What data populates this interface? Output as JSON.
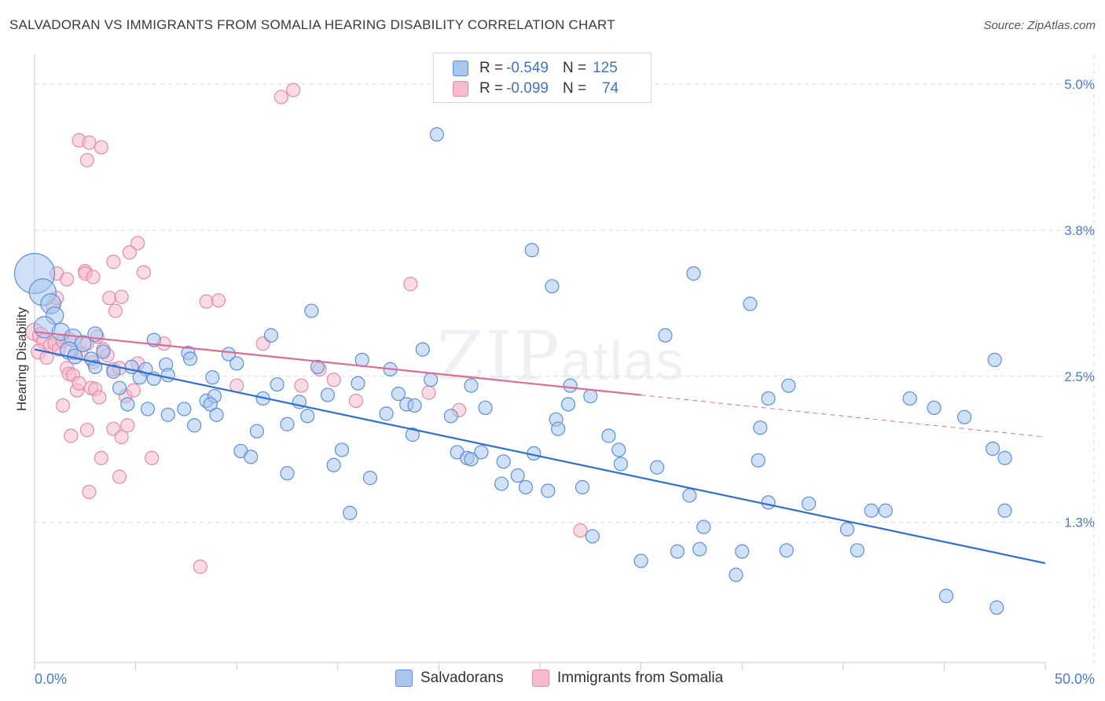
{
  "title": "SALVADORAN VS IMMIGRANTS FROM SOMALIA HEARING DISABILITY CORRELATION CHART",
  "source": "Source: ZipAtlas.com",
  "watermark": {
    "main": "ZIP",
    "suffix": "atlas"
  },
  "legend": [
    {
      "r_label": "R =",
      "r_value": "-0.549",
      "n_label": "N =",
      "n_value": "125"
    },
    {
      "r_label": "R =",
      "r_value": "-0.099",
      "n_label": "N =",
      "n_value": "74"
    }
  ],
  "bottom_legend": [
    "Salvadorans",
    "Immigrants from Somalia"
  ],
  "colors": {
    "blue_fill": "#a9c6ef",
    "blue_stroke": "#5b8fd6",
    "blue_line": "#2f6fcf",
    "pink_fill": "#f6bccd",
    "pink_stroke": "#e38aa8",
    "pink_line": "#e06a93",
    "grid": "#d9d9d9",
    "tick_text": "#4a7ac9"
  },
  "chart_data": {
    "type": "scatter",
    "ylabel": "Hearing Disability",
    "xlabel": "",
    "x_tick_labels": [
      "0.0%",
      "50.0%"
    ],
    "y_tick_labels": [
      "5.0%",
      "3.8%",
      "2.5%",
      "1.3%"
    ],
    "y_ticks": [
      5.0,
      3.75,
      2.5,
      1.25
    ],
    "xlim": [
      0,
      50
    ],
    "ylim": [
      0.05,
      5.25
    ],
    "grid": "horizontal dashed",
    "legend_placement": "top-center",
    "series": [
      {
        "name": "Salvadorans",
        "color": "#5b8fd6",
        "trend": {
          "x": [
            0,
            50
          ],
          "y": [
            2.73,
            0.9
          ],
          "style": "solid"
        },
        "points": [
          [
            0.0,
            3.38,
            3.0
          ],
          [
            0.4,
            3.22,
            2.0
          ],
          [
            0.8,
            3.12,
            1.5
          ],
          [
            1.0,
            3.02,
            1.3
          ],
          [
            0.5,
            2.92,
            1.6
          ],
          [
            1.3,
            2.88,
            1.3
          ],
          [
            1.9,
            2.83,
            1.3
          ],
          [
            2.4,
            2.78,
            1.2
          ],
          [
            3.0,
            2.86,
            1.1
          ],
          [
            1.7,
            2.72,
            1.3
          ],
          [
            2.0,
            2.67,
            1.1
          ],
          [
            2.8,
            2.65,
            1.0
          ],
          [
            3.9,
            2.54,
            1.0
          ],
          [
            3.4,
            2.71,
            1.0
          ],
          [
            3.0,
            2.58,
            1.0
          ],
          [
            4.8,
            2.58,
            1.0
          ],
          [
            5.5,
            2.56,
            1.0
          ],
          [
            4.2,
            2.4,
            1.0
          ],
          [
            4.6,
            2.26,
            1.0
          ],
          [
            5.2,
            2.49,
            1.0
          ],
          [
            5.9,
            2.48,
            1.0
          ],
          [
            6.5,
            2.6,
            1.0
          ],
          [
            6.6,
            2.51,
            1.0
          ],
          [
            5.9,
            2.81,
            1.0
          ],
          [
            5.6,
            2.22,
            1.0
          ],
          [
            6.6,
            2.17,
            1.0
          ],
          [
            7.4,
            2.22,
            1.0
          ],
          [
            7.6,
            2.7,
            1.0
          ],
          [
            7.7,
            2.65,
            1.0
          ],
          [
            7.9,
            2.08,
            1.0
          ],
          [
            8.5,
            2.29,
            1.0
          ],
          [
            8.9,
            2.33,
            1.0
          ],
          [
            8.7,
            2.26,
            1.0
          ],
          [
            9.0,
            2.17,
            1.0
          ],
          [
            8.8,
            2.49,
            1.0
          ],
          [
            9.6,
            2.69,
            1.0
          ],
          [
            10.0,
            2.61,
            1.0
          ],
          [
            10.2,
            1.86,
            1.0
          ],
          [
            10.7,
            1.81,
            1.0
          ],
          [
            11.3,
            2.31,
            1.0
          ],
          [
            11.7,
            2.85,
            1.0
          ],
          [
            12.0,
            2.43,
            1.0
          ],
          [
            11.0,
            2.03,
            1.0
          ],
          [
            12.5,
            2.09,
            1.0
          ],
          [
            12.5,
            1.67,
            1.0
          ],
          [
            13.1,
            2.28,
            1.0
          ],
          [
            13.5,
            2.16,
            1.0
          ],
          [
            13.7,
            3.06,
            1.0
          ],
          [
            14.0,
            2.58,
            1.0
          ],
          [
            14.5,
            2.34,
            1.0
          ],
          [
            14.8,
            1.74,
            1.0
          ],
          [
            15.2,
            1.87,
            1.0
          ],
          [
            15.6,
            1.33,
            1.0
          ],
          [
            16.0,
            2.44,
            1.0
          ],
          [
            16.2,
            2.64,
            1.0
          ],
          [
            16.6,
            1.63,
            1.0
          ],
          [
            17.4,
            2.18,
            1.0
          ],
          [
            17.6,
            2.56,
            1.0
          ],
          [
            18.0,
            2.35,
            1.0
          ],
          [
            18.4,
            2.26,
            1.0
          ],
          [
            18.7,
            2.0,
            1.0
          ],
          [
            19.2,
            2.73,
            1.0
          ],
          [
            19.6,
            2.47,
            1.0
          ],
          [
            18.8,
            2.25,
            1.0
          ],
          [
            19.9,
            4.57,
            1.0
          ],
          [
            20.6,
            2.16,
            1.0
          ],
          [
            20.9,
            1.85,
            1.0
          ],
          [
            21.4,
            1.8,
            1.0
          ],
          [
            21.6,
            2.42,
            1.0
          ],
          [
            21.6,
            1.79,
            1.0
          ],
          [
            22.1,
            1.85,
            1.0
          ],
          [
            22.3,
            2.23,
            1.0
          ],
          [
            23.1,
            1.58,
            1.0
          ],
          [
            23.2,
            1.77,
            1.0
          ],
          [
            23.9,
            1.65,
            1.0
          ],
          [
            24.3,
            1.55,
            1.0
          ],
          [
            24.7,
            1.84,
            1.0
          ],
          [
            24.6,
            3.58,
            1.0
          ],
          [
            25.6,
            3.27,
            1.0
          ],
          [
            25.4,
            1.52,
            1.0
          ],
          [
            25.8,
            2.13,
            1.0
          ],
          [
            25.9,
            2.05,
            1.0
          ],
          [
            26.4,
            2.26,
            1.0
          ],
          [
            26.5,
            2.42,
            1.0
          ],
          [
            27.1,
            1.55,
            1.0
          ],
          [
            27.6,
            1.13,
            1.0
          ],
          [
            27.5,
            2.33,
            1.0
          ],
          [
            28.4,
            1.99,
            1.0
          ],
          [
            28.9,
            1.87,
            1.0
          ],
          [
            29.0,
            1.75,
            1.0
          ],
          [
            30.0,
            0.92,
            1.0
          ],
          [
            30.8,
            1.72,
            1.0
          ],
          [
            31.2,
            2.85,
            1.0
          ],
          [
            31.8,
            1.0,
            1.0
          ],
          [
            32.4,
            1.48,
            1.0
          ],
          [
            32.6,
            3.38,
            1.0
          ],
          [
            32.9,
            1.02,
            1.0
          ],
          [
            33.1,
            1.21,
            1.0
          ],
          [
            34.7,
            0.8,
            1.0
          ],
          [
            35.0,
            1.0,
            1.0
          ],
          [
            35.4,
            3.12,
            1.0
          ],
          [
            35.9,
            2.06,
            1.0
          ],
          [
            35.8,
            1.78,
            1.0
          ],
          [
            36.3,
            1.42,
            1.0
          ],
          [
            36.3,
            2.31,
            1.0
          ],
          [
            37.2,
            1.01,
            1.0
          ],
          [
            37.3,
            2.42,
            1.0
          ],
          [
            38.3,
            1.41,
            1.0
          ],
          [
            40.2,
            1.19,
            1.0
          ],
          [
            40.7,
            1.01,
            1.0
          ],
          [
            41.4,
            1.35,
            1.0
          ],
          [
            42.1,
            1.35,
            1.0
          ],
          [
            43.3,
            2.31,
            1.0
          ],
          [
            44.5,
            2.23,
            1.0
          ],
          [
            45.1,
            0.62,
            1.0
          ],
          [
            46.0,
            2.15,
            1.0
          ],
          [
            47.5,
            2.64,
            1.0
          ],
          [
            47.6,
            0.52,
            1.0
          ],
          [
            47.4,
            1.88,
            1.0
          ],
          [
            48.0,
            1.35,
            1.0
          ],
          [
            48.0,
            1.8,
            1.0
          ]
        ]
      },
      {
        "name": "Immigrants from Somalia",
        "color": "#e38aa8",
        "trend": {
          "x": [
            0,
            30
          ],
          "y": [
            2.88,
            2.34
          ],
          "style": "solid",
          "extension": {
            "x": [
              30,
              50
            ],
            "y": [
              2.34,
              1.98
            ],
            "style": "dashed"
          }
        },
        "points": [
          [
            0.0,
            2.88,
            1.3
          ],
          [
            0.3,
            2.85,
            1.2
          ],
          [
            0.5,
            2.8,
            1.2
          ],
          [
            0.8,
            2.76,
            1.1
          ],
          [
            0.2,
            2.71,
            1.1
          ],
          [
            0.6,
            2.66,
            1.0
          ],
          [
            1.0,
            2.78,
            1.0
          ],
          [
            1.2,
            2.73,
            1.0
          ],
          [
            1.4,
            2.8,
            1.0
          ],
          [
            1.7,
            2.82,
            1.0
          ],
          [
            0.9,
            3.1,
            1.0
          ],
          [
            1.1,
            3.17,
            1.0
          ],
          [
            1.1,
            3.38,
            1.0
          ],
          [
            1.6,
            3.33,
            1.0
          ],
          [
            2.0,
            2.7,
            1.0
          ],
          [
            2.3,
            2.7,
            1.0
          ],
          [
            2.6,
            2.78,
            1.0
          ],
          [
            2.9,
            2.62,
            1.0
          ],
          [
            3.1,
            2.84,
            1.0
          ],
          [
            3.4,
            2.73,
            1.0
          ],
          [
            1.4,
            2.25,
            1.0
          ],
          [
            1.6,
            2.57,
            1.0
          ],
          [
            1.7,
            2.52,
            1.0
          ],
          [
            1.9,
            2.51,
            1.0
          ],
          [
            2.1,
            2.38,
            1.0
          ],
          [
            2.2,
            2.44,
            1.0
          ],
          [
            1.8,
            1.99,
            1.0
          ],
          [
            2.6,
            2.04,
            1.0
          ],
          [
            2.8,
            2.4,
            1.0
          ],
          [
            3.0,
            2.39,
            1.0
          ],
          [
            3.2,
            2.32,
            1.0
          ],
          [
            3.6,
            2.68,
            1.0
          ],
          [
            3.9,
            2.56,
            1.0
          ],
          [
            4.2,
            2.57,
            1.0
          ],
          [
            4.5,
            2.33,
            1.0
          ],
          [
            4.9,
            2.38,
            1.0
          ],
          [
            5.1,
            2.61,
            1.0
          ],
          [
            3.9,
            2.05,
            1.0
          ],
          [
            4.3,
            1.98,
            1.0
          ],
          [
            4.6,
            2.08,
            1.0
          ],
          [
            3.3,
            1.8,
            1.0
          ],
          [
            4.2,
            1.64,
            1.0
          ],
          [
            5.8,
            1.8,
            1.0
          ],
          [
            2.7,
            1.51,
            1.0
          ],
          [
            2.5,
            3.4,
            1.0
          ],
          [
            2.5,
            3.38,
            1.0
          ],
          [
            2.9,
            3.35,
            1.0
          ],
          [
            3.7,
            3.17,
            1.0
          ],
          [
            3.9,
            3.48,
            1.0
          ],
          [
            4.0,
            3.06,
            1.0
          ],
          [
            4.3,
            3.18,
            1.0
          ],
          [
            4.7,
            3.56,
            1.0
          ],
          [
            5.1,
            3.64,
            1.0
          ],
          [
            5.4,
            3.39,
            1.0
          ],
          [
            6.4,
            2.78,
            1.0
          ],
          [
            2.2,
            4.52,
            1.0
          ],
          [
            2.7,
            4.5,
            1.0
          ],
          [
            3.3,
            4.46,
            1.0
          ],
          [
            2.6,
            4.35,
            1.0
          ],
          [
            8.2,
            0.87,
            1.0
          ],
          [
            8.5,
            3.14,
            1.0
          ],
          [
            9.1,
            3.15,
            1.0
          ],
          [
            10.0,
            2.42,
            1.0
          ],
          [
            11.3,
            2.78,
            1.0
          ],
          [
            12.2,
            4.89,
            1.0
          ],
          [
            12.8,
            4.95,
            1.0
          ],
          [
            13.2,
            2.42,
            1.0
          ],
          [
            14.1,
            2.56,
            1.0
          ],
          [
            14.8,
            2.47,
            1.0
          ],
          [
            15.9,
            2.29,
            1.0
          ],
          [
            18.6,
            3.29,
            1.0
          ],
          [
            19.5,
            2.36,
            1.0
          ],
          [
            21.0,
            2.21,
            1.0
          ],
          [
            27.0,
            1.18,
            1.0
          ]
        ]
      }
    ]
  }
}
